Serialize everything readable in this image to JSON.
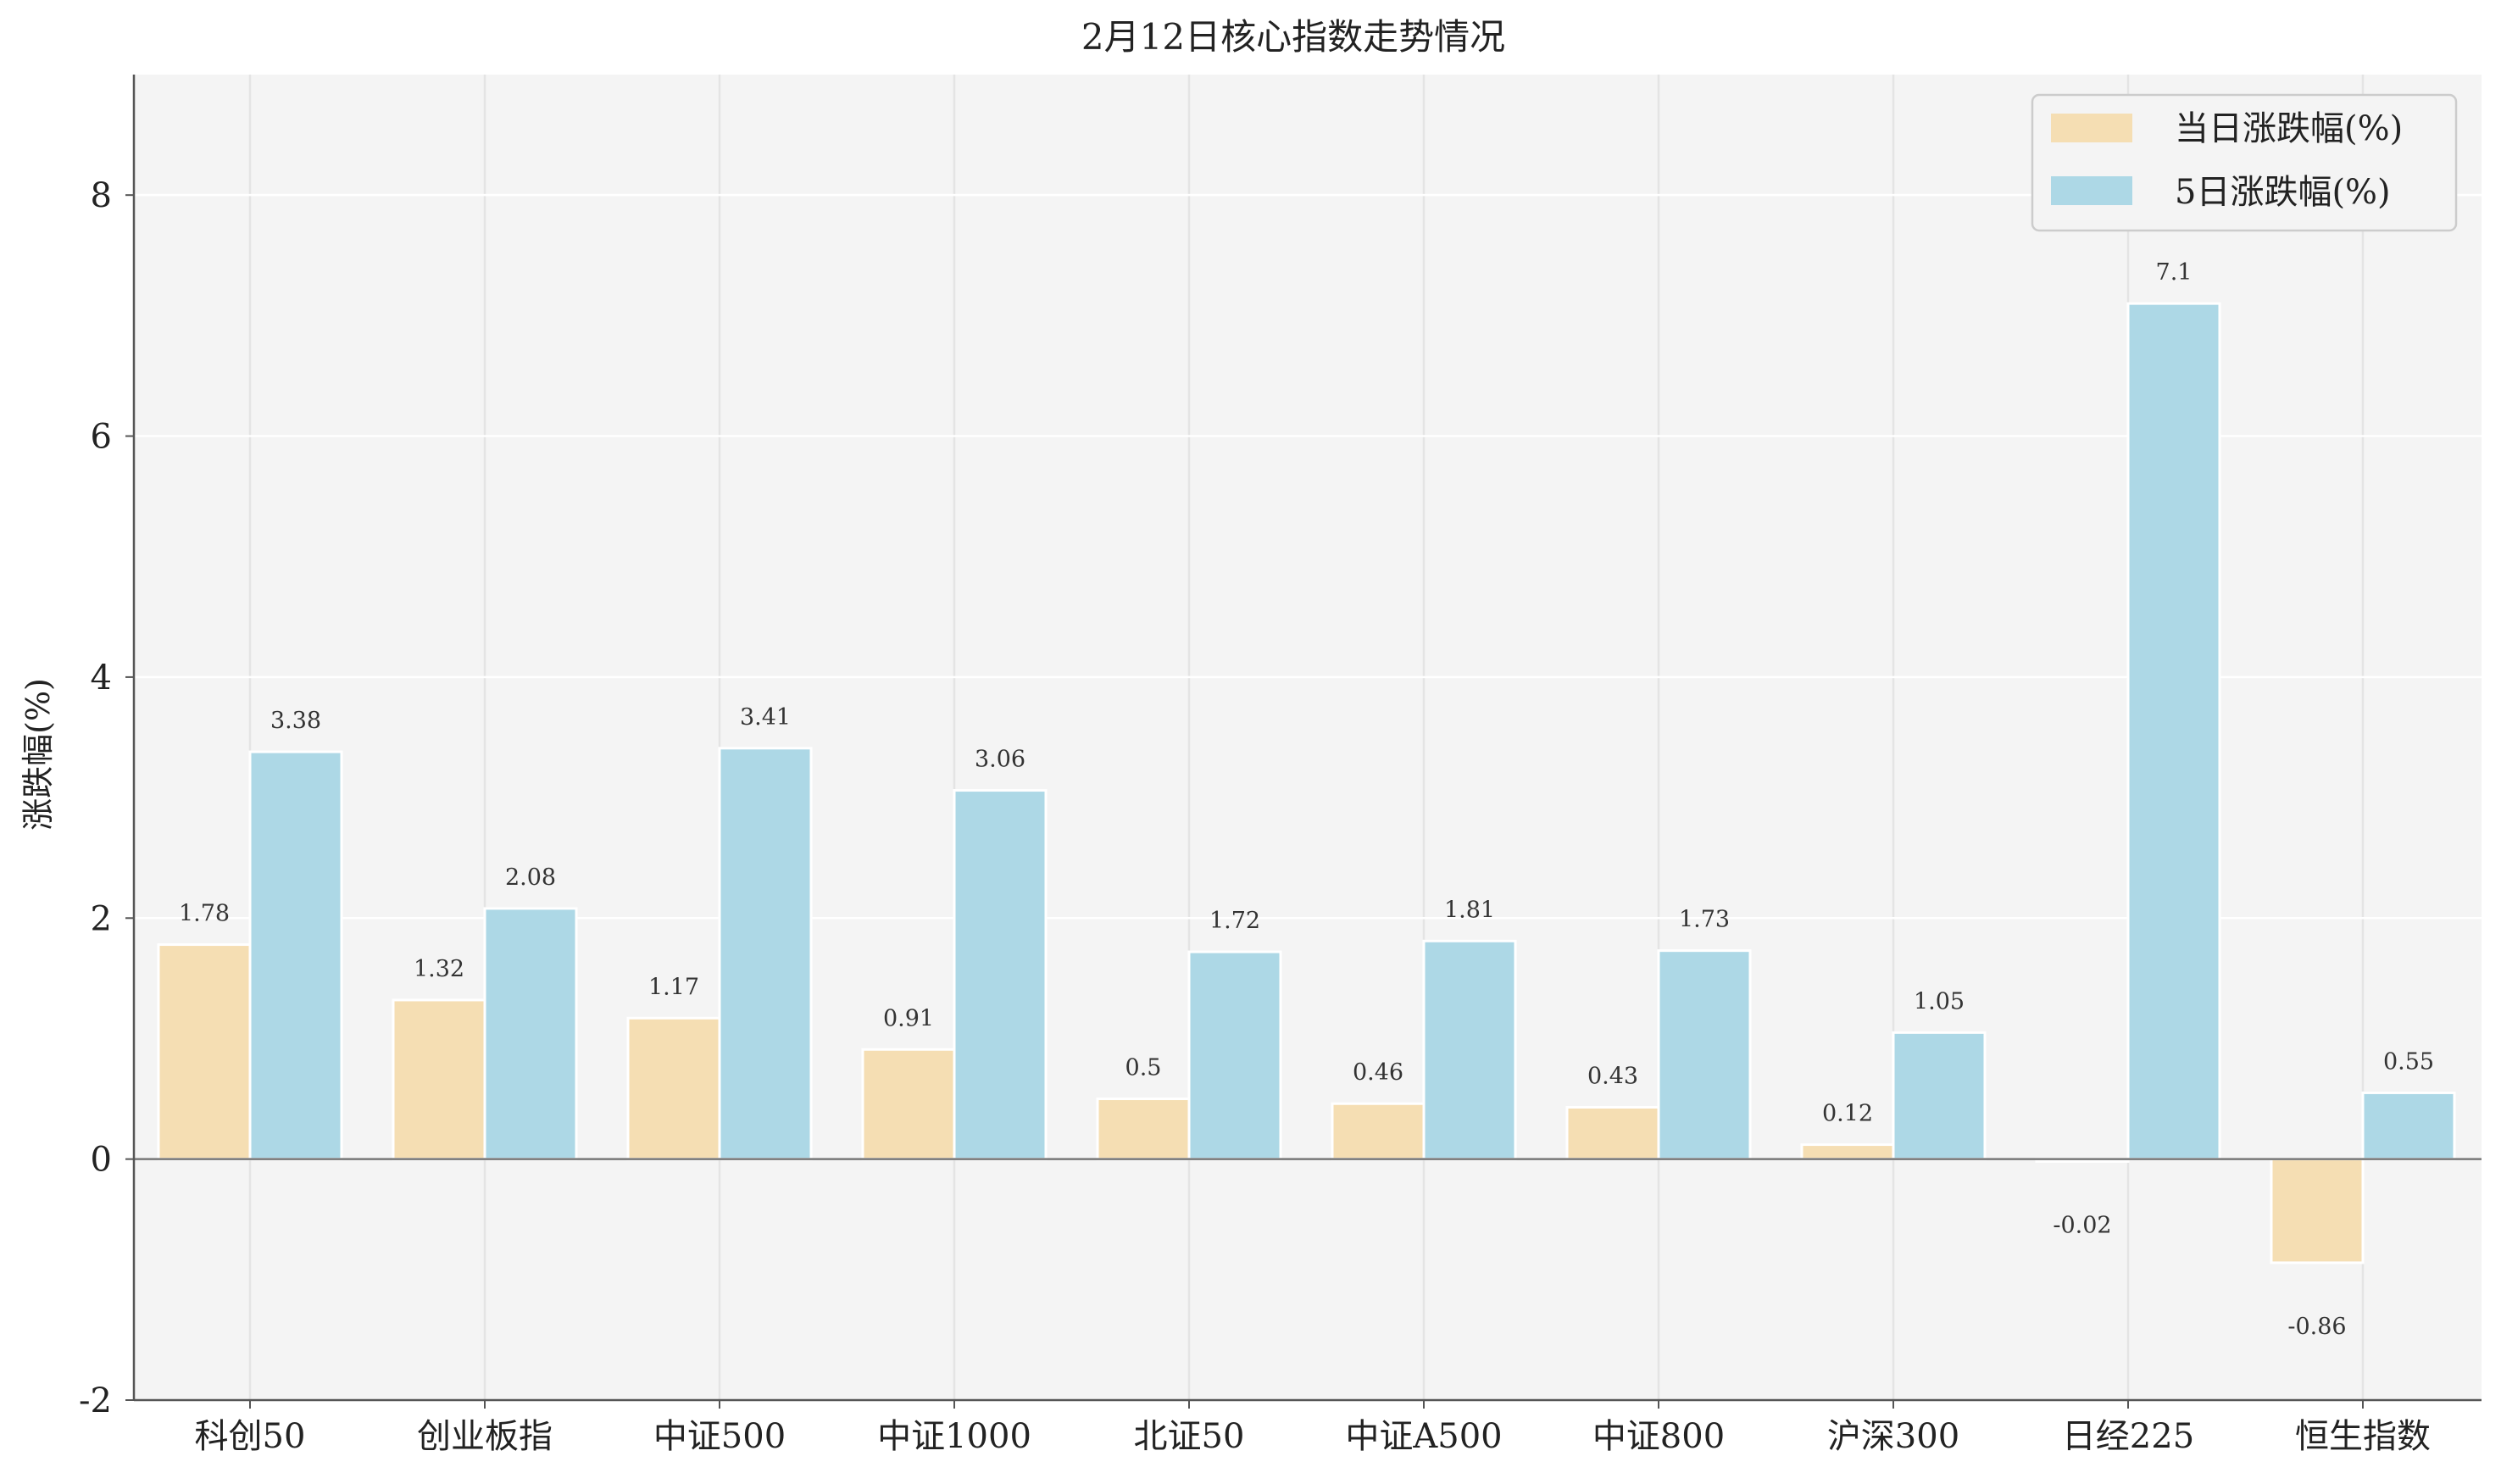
{
  "chart_data": {
    "type": "bar",
    "title": "2月12日核心指数走势情况",
    "xlabel": "",
    "ylabel": "涨跌幅(%)",
    "ylim": [
      -2,
      9
    ],
    "yticks": [
      -2,
      0,
      2,
      4,
      6,
      8
    ],
    "categories": [
      "科创50",
      "创业板指",
      "中证500",
      "中证1000",
      "北证50",
      "中证A500",
      "中证800",
      "沪深300",
      "日经225",
      "恒生指数"
    ],
    "series": [
      {
        "name": "当日涨跌幅(%)",
        "color": "#F5DEB3",
        "values": [
          1.78,
          1.32,
          1.17,
          0.91,
          0.5,
          0.46,
          0.43,
          0.12,
          -0.02,
          -0.86
        ]
      },
      {
        "name": "5日涨跌幅(%)",
        "color": "#ADD8E6",
        "values": [
          3.38,
          2.08,
          3.41,
          3.06,
          1.72,
          1.81,
          1.73,
          1.05,
          7.1,
          0.55
        ]
      }
    ],
    "legend_position": "top-right",
    "grid": true,
    "background_color": "#F4F4F4"
  }
}
